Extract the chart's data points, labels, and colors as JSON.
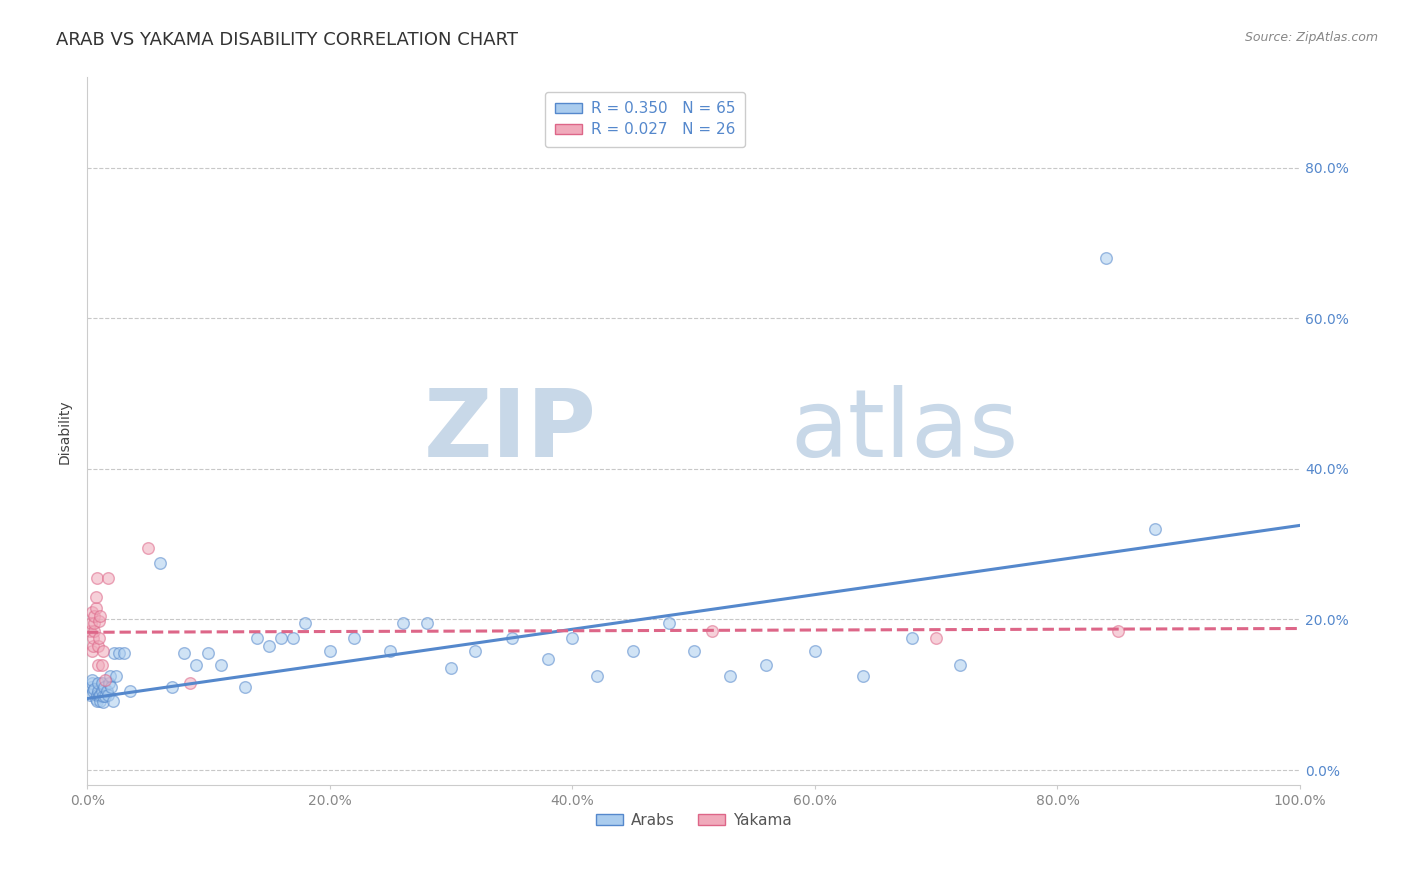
{
  "title": "ARAB VS YAKAMA DISABILITY CORRELATION CHART",
  "source_text": "Source: ZipAtlas.com",
  "ylabel": "Disability",
  "xlim": [
    0.0,
    1.0
  ],
  "ylim": [
    -0.02,
    0.92
  ],
  "x_ticks": [
    0.0,
    0.2,
    0.4,
    0.6,
    0.8,
    1.0
  ],
  "x_tick_labels": [
    "0.0%",
    "20.0%",
    "40.0%",
    "60.0%",
    "80.0%",
    "100.0%"
  ],
  "y_ticks": [
    0.0,
    0.2,
    0.4,
    0.6,
    0.8
  ],
  "y_tick_labels": [
    "0.0%",
    "20.0%",
    "40.0%",
    "60.0%",
    "80.0%"
  ],
  "grid_color": "#c8c8c8",
  "background_color": "#ffffff",
  "watermark_zip": "ZIP",
  "watermark_atlas": "atlas",
  "watermark_color": "#c8d8e8",
  "arab_color": "#5588cc",
  "arab_fill": "#aaccee",
  "yakama_color": "#dd6688",
  "yakama_fill": "#f0aabb",
  "arab_R": 0.35,
  "arab_N": 65,
  "yakama_R": 0.027,
  "yakama_N": 26,
  "legend_label_arab": "Arabs",
  "legend_label_yakama": "Yakama",
  "arab_scatter_x": [
    0.002,
    0.003,
    0.004,
    0.004,
    0.005,
    0.006,
    0.007,
    0.008,
    0.008,
    0.009,
    0.009,
    0.01,
    0.011,
    0.011,
    0.012,
    0.012,
    0.013,
    0.013,
    0.014,
    0.015,
    0.016,
    0.017,
    0.018,
    0.019,
    0.02,
    0.021,
    0.022,
    0.024,
    0.026,
    0.03,
    0.035,
    0.06,
    0.07,
    0.08,
    0.09,
    0.1,
    0.11,
    0.13,
    0.14,
    0.15,
    0.16,
    0.17,
    0.18,
    0.2,
    0.22,
    0.25,
    0.26,
    0.28,
    0.3,
    0.32,
    0.35,
    0.38,
    0.4,
    0.42,
    0.45,
    0.48,
    0.5,
    0.53,
    0.56,
    0.6,
    0.64,
    0.68,
    0.72,
    0.84,
    0.88
  ],
  "arab_scatter_y": [
    0.1,
    0.11,
    0.115,
    0.12,
    0.105,
    0.108,
    0.095,
    0.092,
    0.1,
    0.105,
    0.115,
    0.098,
    0.092,
    0.1,
    0.105,
    0.115,
    0.09,
    0.098,
    0.11,
    0.098,
    0.105,
    0.1,
    0.115,
    0.125,
    0.11,
    0.092,
    0.155,
    0.125,
    0.155,
    0.155,
    0.105,
    0.275,
    0.11,
    0.155,
    0.14,
    0.155,
    0.14,
    0.11,
    0.175,
    0.165,
    0.175,
    0.175,
    0.195,
    0.158,
    0.175,
    0.158,
    0.195,
    0.195,
    0.135,
    0.158,
    0.175,
    0.148,
    0.175,
    0.125,
    0.158,
    0.195,
    0.158,
    0.125,
    0.14,
    0.158,
    0.125,
    0.175,
    0.14,
    0.68,
    0.32
  ],
  "yakama_scatter_x": [
    0.002,
    0.003,
    0.004,
    0.004,
    0.005,
    0.005,
    0.006,
    0.006,
    0.006,
    0.007,
    0.007,
    0.008,
    0.009,
    0.009,
    0.01,
    0.01,
    0.011,
    0.012,
    0.013,
    0.015,
    0.017,
    0.05,
    0.085,
    0.515,
    0.7,
    0.85
  ],
  "yakama_scatter_y": [
    0.185,
    0.195,
    0.21,
    0.158,
    0.165,
    0.175,
    0.185,
    0.195,
    0.205,
    0.215,
    0.23,
    0.255,
    0.14,
    0.165,
    0.175,
    0.198,
    0.205,
    0.14,
    0.158,
    0.12,
    0.255,
    0.295,
    0.115,
    0.185,
    0.175,
    0.185
  ],
  "arab_line_x": [
    0.0,
    1.0
  ],
  "arab_line_y_start": 0.095,
  "arab_line_y_end": 0.325,
  "yakama_line_x": [
    0.0,
    1.0
  ],
  "yakama_line_y_start": 0.183,
  "yakama_line_y_end": 0.188,
  "title_fontsize": 13,
  "axis_label_fontsize": 10,
  "tick_fontsize": 10,
  "legend_fontsize": 11,
  "source_fontsize": 9,
  "scatter_size": 70,
  "scatter_alpha": 0.55,
  "line_width": 2.2,
  "right_tick_color": "#5588cc"
}
